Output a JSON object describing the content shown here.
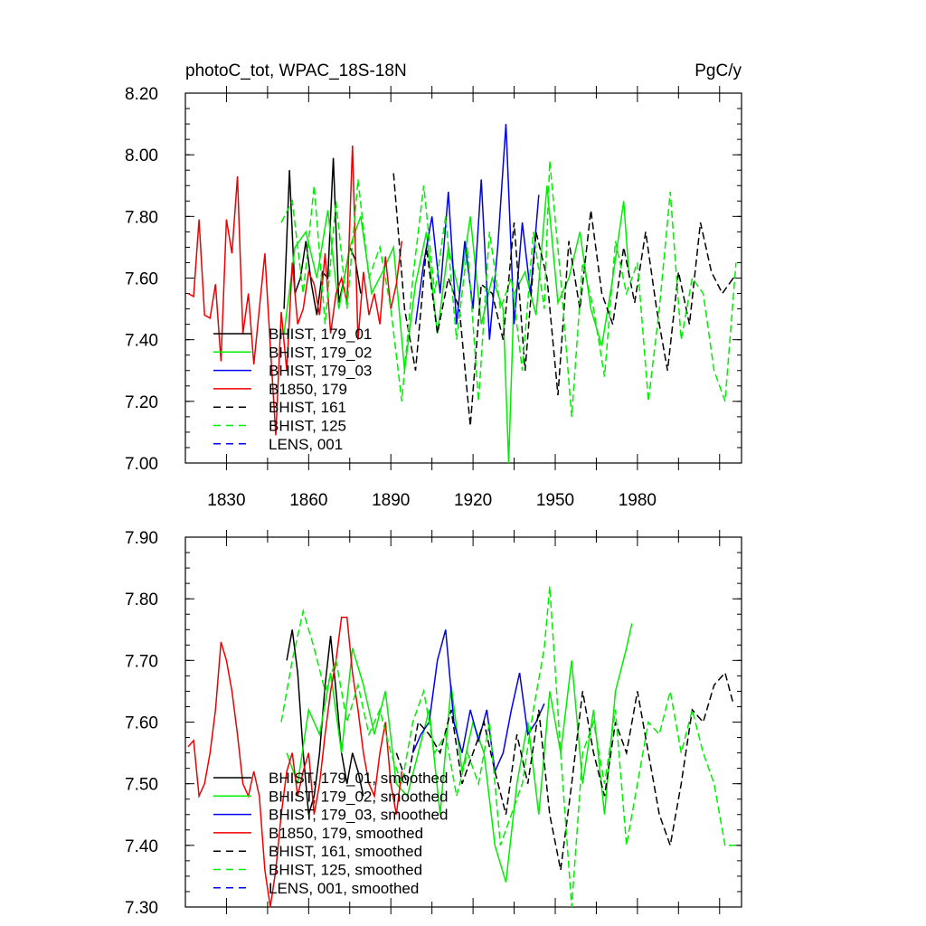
{
  "chart_data": [
    {
      "type": "line",
      "title": "photoC_tot, WPAC_18S-18N",
      "units": "PgC/y",
      "xlim": [
        1815,
        2018
      ],
      "ylim": [
        7.0,
        8.2
      ],
      "xticks": [
        "1830",
        "1860",
        "1890",
        "1920",
        "1950",
        "1980"
      ],
      "yticks": [
        "7.00",
        "7.20",
        "7.40",
        "7.60",
        "7.80",
        "8.00",
        "8.20"
      ],
      "legend_position": "lower-left",
      "series": [
        {
          "name": "BHIST, 179_01",
          "color": "#000000",
          "dash": "solid",
          "x": [
            1851,
            1853,
            1855,
            1857,
            1859,
            1861,
            1863,
            1865,
            1867,
            1869,
            1871,
            1873,
            1875,
            1877,
            1879
          ],
          "values": [
            7.5,
            7.95,
            7.55,
            7.6,
            7.72,
            7.58,
            7.48,
            7.62,
            7.6,
            7.99,
            7.52,
            7.6,
            7.7,
            7.66,
            7.55
          ]
        },
        {
          "name": "BHIST, 179_02",
          "color": "#00ee00",
          "dash": "solid",
          "x": [
            1851,
            1855,
            1859,
            1863,
            1867,
            1871,
            1875,
            1879,
            1883,
            1887,
            1891,
            1895,
            1899,
            1903,
            1907,
            1911,
            1915,
            1919,
            1923,
            1927,
            1931,
            1933,
            1935,
            1939,
            1943,
            1947,
            1951,
            1955,
            1959,
            1963,
            1967,
            1971,
            1975,
            1977
          ],
          "values": [
            7.42,
            7.7,
            7.75,
            7.6,
            7.82,
            7.5,
            7.7,
            7.8,
            7.55,
            7.62,
            7.7,
            7.3,
            7.58,
            7.75,
            7.42,
            7.7,
            7.55,
            7.8,
            7.45,
            7.6,
            7.5,
            7.0,
            7.55,
            7.62,
            7.48,
            7.9,
            7.52,
            7.6,
            7.75,
            7.5,
            7.38,
            7.6,
            7.85,
            7.6
          ]
        },
        {
          "name": "BHIST, 179_03",
          "color": "#0000ee",
          "dash": "solid",
          "x": [
            1899,
            1902,
            1905,
            1908,
            1911,
            1914,
            1917,
            1920,
            1923,
            1926,
            1929,
            1932,
            1935,
            1938,
            1941,
            1944
          ],
          "values": [
            7.45,
            7.65,
            7.8,
            7.55,
            7.88,
            7.45,
            7.72,
            7.5,
            7.92,
            7.4,
            7.7,
            8.1,
            7.45,
            7.78,
            7.55,
            7.87
          ]
        },
        {
          "name": "B1850, 179",
          "color": "#ee0000",
          "dash": "solid",
          "x": [
            1816,
            1818,
            1820,
            1822,
            1824,
            1826,
            1828,
            1830,
            1832,
            1834,
            1836,
            1838,
            1840,
            1842,
            1844,
            1846,
            1848,
            1850,
            1852,
            1854,
            1856,
            1858,
            1860,
            1862,
            1864,
            1866,
            1868,
            1870,
            1872,
            1874,
            1876,
            1878,
            1880,
            1882,
            1884,
            1886,
            1888,
            1890,
            1892,
            1894
          ],
          "values": [
            7.55,
            7.54,
            7.79,
            7.48,
            7.47,
            7.58,
            7.33,
            7.79,
            7.68,
            7.93,
            7.42,
            7.55,
            7.32,
            7.5,
            7.68,
            7.38,
            7.09,
            7.49,
            7.3,
            7.65,
            7.45,
            7.5,
            7.62,
            7.58,
            7.48,
            7.68,
            7.42,
            7.55,
            7.6,
            7.52,
            8.03,
            7.4,
            7.62,
            7.48,
            7.55,
            7.45,
            7.67,
            7.5,
            7.58,
            7.72
          ]
        },
        {
          "name": "BHIST, 161",
          "color": "#000000",
          "dash": "dashed",
          "x": [
            1891,
            1895,
            1899,
            1903,
            1907,
            1911,
            1915,
            1919,
            1923,
            1927,
            1931,
            1935,
            1939,
            1943,
            1947,
            1951,
            1955,
            1959,
            1963,
            1967,
            1971,
            1975,
            1979,
            1983,
            1987,
            1991,
            1995,
            1999,
            2003,
            2007,
            2011,
            2015
          ],
          "values": [
            7.94,
            7.5,
            7.3,
            7.7,
            7.42,
            7.6,
            7.5,
            7.12,
            7.58,
            7.55,
            7.4,
            7.78,
            7.3,
            7.75,
            7.6,
            7.22,
            7.72,
            7.5,
            7.82,
            7.55,
            7.45,
            7.7,
            7.52,
            7.75,
            7.5,
            7.3,
            7.62,
            7.45,
            7.78,
            7.62,
            7.55,
            7.6
          ]
        },
        {
          "name": "BHIST, 125",
          "color": "#00ee00",
          "dash": "dashed",
          "x": [
            1850,
            1854,
            1858,
            1862,
            1866,
            1870,
            1874,
            1878,
            1882,
            1886,
            1890,
            1894,
            1898,
            1902,
            1906,
            1910,
            1914,
            1918,
            1922,
            1926,
            1930,
            1934,
            1938,
            1942,
            1946,
            1948,
            1952,
            1956,
            1960,
            1964,
            1968,
            1972,
            1976,
            1980,
            1984,
            1988,
            1992,
            1996,
            2000,
            2004,
            2008,
            2012,
            2016
          ],
          "values": [
            7.78,
            7.85,
            7.55,
            7.9,
            7.45,
            7.85,
            7.5,
            7.92,
            7.6,
            7.7,
            7.5,
            7.2,
            7.6,
            7.9,
            7.55,
            7.8,
            7.4,
            7.7,
            7.2,
            7.75,
            7.5,
            7.6,
            7.3,
            7.75,
            7.5,
            7.98,
            7.6,
            7.15,
            7.65,
            7.5,
            7.28,
            7.72,
            7.55,
            7.65,
            7.2,
            7.5,
            7.88,
            7.4,
            7.6,
            7.55,
            7.3,
            7.2,
            7.65
          ]
        },
        {
          "name": "LENS, 001",
          "color": "#0000ee",
          "dash": "dashed",
          "x": [],
          "values": []
        }
      ]
    },
    {
      "type": "line",
      "title": "",
      "xlim": [
        1815,
        2018
      ],
      "ylim": [
        7.3,
        7.9
      ],
      "xticks": [],
      "yticks": [
        "7.30",
        "7.40",
        "7.50",
        "7.60",
        "7.70",
        "7.80",
        "7.90"
      ],
      "legend_position": "lower-left",
      "series": [
        {
          "name": "BHIST, 179_01, smoothed",
          "color": "#000000",
          "dash": "solid",
          "x": [
            1852,
            1854,
            1856,
            1858,
            1860,
            1862,
            1864,
            1866,
            1868,
            1870,
            1872,
            1874,
            1876,
            1878,
            1880
          ],
          "values": [
            7.7,
            7.75,
            7.68,
            7.55,
            7.45,
            7.48,
            7.55,
            7.66,
            7.74,
            7.65,
            7.55,
            7.5,
            7.55,
            7.52,
            7.48
          ]
        },
        {
          "name": "BHIST, 179_02, smoothed",
          "color": "#00ee00",
          "dash": "solid",
          "x": [
            1852,
            1856,
            1860,
            1864,
            1868,
            1872,
            1876,
            1880,
            1884,
            1888,
            1892,
            1896,
            1900,
            1904,
            1908,
            1912,
            1916,
            1920,
            1924,
            1928,
            1932,
            1936,
            1940,
            1944,
            1948,
            1952,
            1956,
            1960,
            1964,
            1968,
            1972,
            1976,
            1978
          ],
          "values": [
            7.55,
            7.5,
            7.62,
            7.58,
            7.68,
            7.55,
            7.72,
            7.66,
            7.58,
            7.65,
            7.5,
            7.48,
            7.55,
            7.62,
            7.45,
            7.66,
            7.52,
            7.6,
            7.55,
            7.4,
            7.34,
            7.5,
            7.6,
            7.45,
            7.65,
            7.55,
            7.7,
            7.5,
            7.62,
            7.45,
            7.65,
            7.72,
            7.76
          ]
        },
        {
          "name": "BHIST, 179_03, smoothed",
          "color": "#0000ee",
          "dash": "solid",
          "x": [
            1898,
            1901,
            1904,
            1907,
            1910,
            1913,
            1916,
            1919,
            1922,
            1925,
            1928,
            1931,
            1934,
            1937,
            1940,
            1943,
            1946
          ],
          "values": [
            7.55,
            7.58,
            7.6,
            7.7,
            7.75,
            7.6,
            7.55,
            7.62,
            7.57,
            7.62,
            7.52,
            7.55,
            7.62,
            7.68,
            7.58,
            7.6,
            7.63
          ]
        },
        {
          "name": "B1850, 179, smoothed",
          "color": "#ee0000",
          "dash": "solid",
          "x": [
            1816,
            1818,
            1820,
            1822,
            1824,
            1826,
            1828,
            1830,
            1832,
            1834,
            1836,
            1838,
            1840,
            1842,
            1844,
            1846,
            1848,
            1850,
            1852,
            1854,
            1856,
            1858,
            1860,
            1862,
            1864,
            1866,
            1868,
            1870,
            1872,
            1874,
            1876,
            1878,
            1880,
            1882,
            1884,
            1886,
            1888,
            1890,
            1892,
            1894
          ],
          "values": [
            7.56,
            7.57,
            7.48,
            7.5,
            7.55,
            7.62,
            7.73,
            7.7,
            7.65,
            7.58,
            7.5,
            7.48,
            7.52,
            7.48,
            7.36,
            7.3,
            7.36,
            7.45,
            7.52,
            7.55,
            7.48,
            7.52,
            7.55,
            7.45,
            7.5,
            7.58,
            7.65,
            7.7,
            7.77,
            7.77,
            7.68,
            7.62,
            7.55,
            7.5,
            7.48,
            7.55,
            7.6,
            7.5,
            7.45,
            7.52
          ]
        },
        {
          "name": "BHIST, 161, smoothed",
          "color": "#000000",
          "dash": "dashed",
          "x": [
            1892,
            1896,
            1900,
            1904,
            1908,
            1912,
            1916,
            1920,
            1924,
            1928,
            1932,
            1936,
            1940,
            1944,
            1948,
            1952,
            1956,
            1960,
            1964,
            1968,
            1972,
            1976,
            1980,
            1984,
            1988,
            1992,
            1996,
            2000,
            2004,
            2008,
            2012,
            2015
          ],
          "values": [
            7.55,
            7.5,
            7.6,
            7.58,
            7.55,
            7.62,
            7.5,
            7.55,
            7.6,
            7.52,
            7.45,
            7.58,
            7.5,
            7.62,
            7.45,
            7.36,
            7.5,
            7.65,
            7.55,
            7.48,
            7.6,
            7.55,
            7.65,
            7.55,
            7.45,
            7.4,
            7.5,
            7.62,
            7.6,
            7.66,
            7.68,
            7.63
          ]
        },
        {
          "name": "BHIST, 125, smoothed",
          "color": "#00ee00",
          "dash": "dashed",
          "x": [
            1850,
            1854,
            1858,
            1862,
            1866,
            1870,
            1874,
            1878,
            1882,
            1886,
            1890,
            1894,
            1898,
            1902,
            1906,
            1910,
            1914,
            1918,
            1922,
            1926,
            1930,
            1934,
            1938,
            1942,
            1946,
            1948,
            1952,
            1956,
            1960,
            1964,
            1968,
            1972,
            1976,
            1980,
            1984,
            1988,
            1992,
            1996,
            2000,
            2004,
            2008,
            2012,
            2016
          ],
          "values": [
            7.6,
            7.7,
            7.78,
            7.72,
            7.65,
            7.7,
            7.6,
            7.66,
            7.58,
            7.62,
            7.55,
            7.5,
            7.6,
            7.65,
            7.55,
            7.58,
            7.48,
            7.55,
            7.5,
            7.6,
            7.4,
            7.45,
            7.5,
            7.62,
            7.72,
            7.82,
            7.55,
            7.3,
            7.55,
            7.6,
            7.5,
            7.62,
            7.4,
            7.5,
            7.6,
            7.58,
            7.65,
            7.55,
            7.62,
            7.55,
            7.5,
            7.4,
            7.4
          ]
        },
        {
          "name": "LENS, 001, smoothed",
          "color": "#0000ee",
          "dash": "dashed",
          "x": [],
          "values": []
        }
      ]
    }
  ]
}
